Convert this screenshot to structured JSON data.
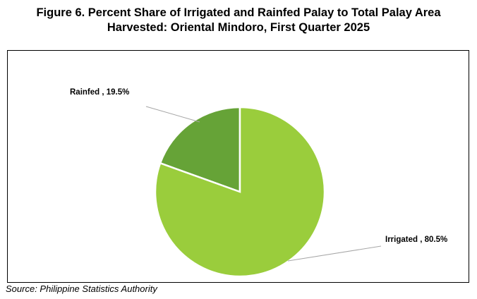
{
  "header": {
    "title_line1": "Figure 6. Percent Share of Irrigated and Rainfed Palay to Total Palay Area",
    "title_line2": "Harvested: Oriental Mindoro, First Quarter 2025"
  },
  "footer": {
    "source": "Source: Philippine Statistics Authority"
  },
  "chart_data": {
    "type": "pie",
    "title": "Figure 6. Percent Share of Irrigated and Rainfed Palay to Total Palay Area Harvested: Oriental Mindoro, First Quarter 2025",
    "slices": [
      {
        "label": "Rainfed",
        "value": 19.5,
        "display": "Rainfed , 19.5%",
        "color": "#66a337"
      },
      {
        "label": "Irrigated",
        "value": 80.5,
        "display": "Irrigated , 80.5%",
        "color": "#9acd3c"
      }
    ]
  }
}
